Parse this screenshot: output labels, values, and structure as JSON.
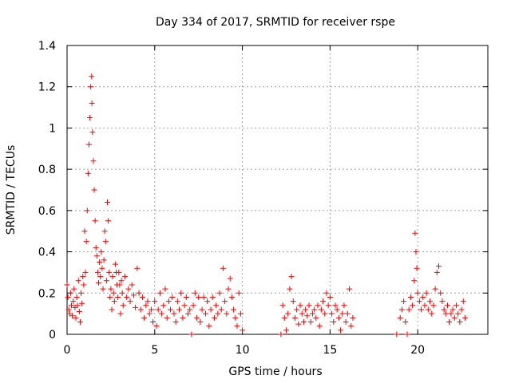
{
  "chart_data": {
    "type": "scatter",
    "title": "Day 334 of 2017, SRMTID for receiver rspe",
    "xlabel": "GPS time / hours",
    "ylabel": "SRMTID / TECUs",
    "xlim": [
      0,
      24
    ],
    "ylim": [
      0,
      1.4
    ],
    "xticks": [
      0,
      5,
      10,
      15,
      20
    ],
    "yticks": [
      0,
      0.2,
      0.4,
      0.6,
      0.8,
      1,
      1.2,
      1.4
    ],
    "xtick_labels": [
      "0",
      "5",
      "10",
      "15",
      "20"
    ],
    "ytick_labels": [
      "0",
      "0.2",
      "0.4",
      "0.6",
      "0.8",
      "1",
      "1.2",
      "1.4"
    ],
    "grid": true,
    "marker": "+",
    "color": "#ff0000",
    "series": [
      {
        "name": "SRMTID",
        "points": [
          [
            0.0,
            0.24
          ],
          [
            0.05,
            0.18
          ],
          [
            0.1,
            0.12
          ],
          [
            0.15,
            0.1
          ],
          [
            0.2,
            0.2
          ],
          [
            0.25,
            0.14
          ],
          [
            0.3,
            0.09
          ],
          [
            0.35,
            0.16
          ],
          [
            0.4,
            0.22
          ],
          [
            0.45,
            0.13
          ],
          [
            0.5,
            0.08
          ],
          [
            0.55,
            0.18
          ],
          [
            0.6,
            0.14
          ],
          [
            0.65,
            0.26
          ],
          [
            0.7,
            0.11
          ],
          [
            0.75,
            0.06
          ],
          [
            0.8,
            0.2
          ],
          [
            0.85,
            0.15
          ],
          [
            0.9,
            0.28
          ],
          [
            0.95,
            0.24
          ],
          [
            1.0,
            0.5
          ],
          [
            1.05,
            0.3
          ],
          [
            1.1,
            0.45
          ],
          [
            1.15,
            0.6
          ],
          [
            1.2,
            0.78
          ],
          [
            1.25,
            0.92
          ],
          [
            1.3,
            1.05
          ],
          [
            1.35,
            1.2
          ],
          [
            1.4,
            1.25
          ],
          [
            1.42,
            1.12
          ],
          [
            1.45,
            0.98
          ],
          [
            1.5,
            0.84
          ],
          [
            1.55,
            0.7
          ],
          [
            1.6,
            0.55
          ],
          [
            1.65,
            0.42
          ],
          [
            1.7,
            0.38
          ],
          [
            1.75,
            0.3
          ],
          [
            1.8,
            0.25
          ],
          [
            1.85,
            0.35
          ],
          [
            1.9,
            0.28
          ],
          [
            1.95,
            0.4
          ],
          [
            2.0,
            0.32
          ],
          [
            2.05,
            0.22
          ],
          [
            2.1,
            0.36
          ],
          [
            2.15,
            0.5
          ],
          [
            2.2,
            0.45
          ],
          [
            2.25,
            0.26
          ],
          [
            2.3,
            0.64
          ],
          [
            2.35,
            0.55
          ],
          [
            2.4,
            0.3
          ],
          [
            2.45,
            0.18
          ],
          [
            2.5,
            0.22
          ],
          [
            2.55,
            0.12
          ],
          [
            2.6,
            0.28
          ],
          [
            2.65,
            0.2
          ],
          [
            2.7,
            0.16
          ],
          [
            2.75,
            0.34
          ],
          [
            2.8,
            0.3
          ],
          [
            2.85,
            0.24
          ],
          [
            2.9,
            0.18
          ],
          [
            2.95,
            0.3
          ],
          [
            3.0,
            0.24
          ],
          [
            3.05,
            0.1
          ],
          [
            3.1,
            0.26
          ],
          [
            3.15,
            0.2
          ],
          [
            3.2,
            0.14
          ],
          [
            3.3,
            0.28
          ],
          [
            3.4,
            0.18
          ],
          [
            3.5,
            0.22
          ],
          [
            3.6,
            0.16
          ],
          [
            3.7,
            0.24
          ],
          [
            3.8,
            0.19
          ],
          [
            3.9,
            0.13
          ],
          [
            4.0,
            0.32
          ],
          [
            4.1,
            0.2
          ],
          [
            4.2,
            0.12
          ],
          [
            4.3,
            0.18
          ],
          [
            4.4,
            0.08
          ],
          [
            4.5,
            0.14
          ],
          [
            4.6,
            0.16
          ],
          [
            4.7,
            0.1
          ],
          [
            4.8,
            0.12
          ],
          [
            4.9,
            0.06
          ],
          [
            5.0,
            0.16
          ],
          [
            5.1,
            0.04
          ],
          [
            5.2,
            0.12
          ],
          [
            5.3,
            0.2
          ],
          [
            5.4,
            0.1
          ],
          [
            5.5,
            0.14
          ],
          [
            5.6,
            0.22
          ],
          [
            5.7,
            0.08
          ],
          [
            5.8,
            0.16
          ],
          [
            5.9,
            0.12
          ],
          [
            6.0,
            0.18
          ],
          [
            6.1,
            0.1
          ],
          [
            6.2,
            0.06
          ],
          [
            6.3,
            0.16
          ],
          [
            6.4,
            0.12
          ],
          [
            6.5,
            0.2
          ],
          [
            6.6,
            0.08
          ],
          [
            6.7,
            0.14
          ],
          [
            6.8,
            0.18
          ],
          [
            6.9,
            0.1
          ],
          [
            7.0,
            0.12
          ],
          [
            7.1,
            0.0
          ],
          [
            7.2,
            0.14
          ],
          [
            7.3,
            0.2
          ],
          [
            7.4,
            0.08
          ],
          [
            7.5,
            0.18
          ],
          [
            7.6,
            0.06
          ],
          [
            7.7,
            0.12
          ],
          [
            7.8,
            0.18
          ],
          [
            7.9,
            0.1
          ],
          [
            8.0,
            0.16
          ],
          [
            8.1,
            0.04
          ],
          [
            8.2,
            0.12
          ],
          [
            8.3,
            0.18
          ],
          [
            8.4,
            0.08
          ],
          [
            8.5,
            0.14
          ],
          [
            8.6,
            0.1
          ],
          [
            8.7,
            0.2
          ],
          [
            8.8,
            0.12
          ],
          [
            8.9,
            0.32
          ],
          [
            9.0,
            0.16
          ],
          [
            9.1,
            0.1
          ],
          [
            9.2,
            0.22
          ],
          [
            9.3,
            0.27
          ],
          [
            9.4,
            0.18
          ],
          [
            9.5,
            0.12
          ],
          [
            9.6,
            0.08
          ],
          [
            9.7,
            0.04
          ],
          [
            9.8,
            0.2
          ],
          [
            9.9,
            0.1
          ],
          [
            10.0,
            0.02
          ],
          [
            12.2,
            0.0
          ],
          [
            12.3,
            0.14
          ],
          [
            12.4,
            0.08
          ],
          [
            12.5,
            0.02
          ],
          [
            12.6,
            0.1
          ],
          [
            12.7,
            0.22
          ],
          [
            12.8,
            0.28
          ],
          [
            12.9,
            0.16
          ],
          [
            13.0,
            0.08
          ],
          [
            13.1,
            0.12
          ],
          [
            13.2,
            0.05
          ],
          [
            13.3,
            0.14
          ],
          [
            13.4,
            0.1
          ],
          [
            13.5,
            0.06
          ],
          [
            13.6,
            0.12
          ],
          [
            13.7,
            0.09
          ],
          [
            13.8,
            0.14
          ],
          [
            13.9,
            0.06
          ],
          [
            14.0,
            0.1
          ],
          [
            14.1,
            0.12
          ],
          [
            14.2,
            0.08
          ],
          [
            14.3,
            0.14
          ],
          [
            14.4,
            0.04
          ],
          [
            14.5,
            0.12
          ],
          [
            14.6,
            0.16
          ],
          [
            14.7,
            0.1
          ],
          [
            14.8,
            0.2
          ],
          [
            14.9,
            0.14
          ],
          [
            15.0,
            0.18
          ],
          [
            15.1,
            0.1
          ],
          [
            15.2,
            0.06
          ],
          [
            15.3,
            0.14
          ],
          [
            15.4,
            0.12
          ],
          [
            15.5,
            0.08
          ],
          [
            15.6,
            0.02
          ],
          [
            15.7,
            0.1
          ],
          [
            15.8,
            0.14
          ],
          [
            15.9,
            0.06
          ],
          [
            16.0,
            0.1
          ],
          [
            16.1,
            0.22
          ],
          [
            16.2,
            0.04
          ],
          [
            16.3,
            0.08
          ],
          [
            18.8,
            0.0
          ],
          [
            19.0,
            0.08
          ],
          [
            19.1,
            0.12
          ],
          [
            19.2,
            0.16
          ],
          [
            19.3,
            0.06
          ],
          [
            19.4,
            0.0
          ],
          [
            19.5,
            0.12
          ],
          [
            19.6,
            0.18
          ],
          [
            19.7,
            0.14
          ],
          [
            19.8,
            0.26
          ],
          [
            19.85,
            0.49
          ],
          [
            19.9,
            0.4
          ],
          [
            19.95,
            0.32
          ],
          [
            20.0,
            0.2
          ],
          [
            20.1,
            0.16
          ],
          [
            20.2,
            0.12
          ],
          [
            20.3,
            0.18
          ],
          [
            20.4,
            0.14
          ],
          [
            20.5,
            0.2
          ],
          [
            20.6,
            0.12
          ],
          [
            20.7,
            0.16
          ],
          [
            20.8,
            0.1
          ],
          [
            20.9,
            0.14
          ],
          [
            21.0,
            0.22
          ],
          [
            21.1,
            0.3
          ],
          [
            21.2,
            0.33
          ],
          [
            21.3,
            0.2
          ],
          [
            21.4,
            0.16
          ],
          [
            21.5,
            0.12
          ],
          [
            21.6,
            0.1
          ],
          [
            21.7,
            0.14
          ],
          [
            21.8,
            0.06
          ],
          [
            21.9,
            0.1
          ],
          [
            22.0,
            0.12
          ],
          [
            22.1,
            0.08
          ],
          [
            22.2,
            0.14
          ],
          [
            22.3,
            0.1
          ],
          [
            22.4,
            0.06
          ],
          [
            22.5,
            0.12
          ],
          [
            22.6,
            0.16
          ],
          [
            22.7,
            0.08
          ]
        ]
      }
    ]
  }
}
